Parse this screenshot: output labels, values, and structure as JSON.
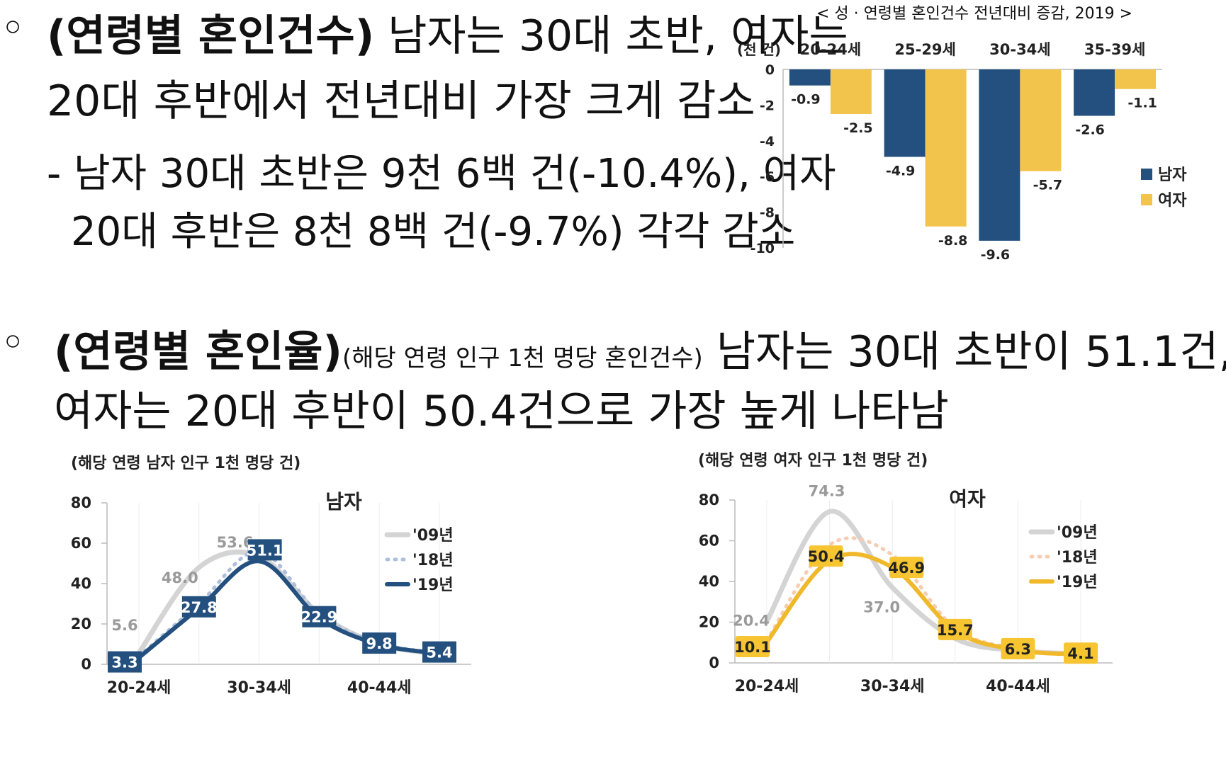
{
  "section1": {
    "bullet": "○",
    "heading": "(연령별 혼인건수)",
    "line1_rest": " 남자는 30대 초반, 여자는",
    "line2": "20대 후반에서 전년대비 가장 크게 감소",
    "sub_line1": "- 남자 30대 초반은 9천 6백 건(-10.4%), 여자",
    "sub_line2": "20대 후반은 8천 8백 건(-9.7%) 각각 감소"
  },
  "section2": {
    "bullet": "○",
    "heading": "(연령별 혼인율)",
    "note": "(해당 연령 인구 1천 명당 혼인건수)",
    "line1_rest": " 남자는 30대 초반이 51.1건,",
    "line2": "여자는 20대 후반이 50.4건으로 가장 높게 나타남"
  },
  "colors": {
    "male": "#23507f",
    "female": "#f2c44c",
    "gray09": "#d4d4d4",
    "male18": "#aebfdb",
    "female18": "#f6cdb2"
  },
  "chart_data": [
    {
      "type": "bar",
      "title": "< 성 · 연령별 혼인건수 전년대비 증감, 2019 >",
      "unit_label": "(천 건)",
      "categories": [
        "20-24세",
        "25-29세",
        "30-34세",
        "35-39세"
      ],
      "series": [
        {
          "name": "남자",
          "values": [
            -0.9,
            -4.9,
            -9.6,
            -2.6
          ]
        },
        {
          "name": "여자",
          "values": [
            -2.5,
            -8.8,
            -5.7,
            -1.1
          ]
        }
      ],
      "ylim": [
        -10,
        0
      ],
      "yticks": [
        0,
        -2,
        -4,
        -6,
        -8,
        -10
      ],
      "legend": "right",
      "grid": false
    },
    {
      "type": "line",
      "title": "남자",
      "unit_label": "(해당 연령 남자 인구 1천 명당 건)",
      "x_tick_labels": [
        "20-24세",
        "30-34세",
        "40-44세"
      ],
      "ylim": [
        0,
        80
      ],
      "yticks": [
        0,
        20,
        40,
        60,
        80
      ],
      "legend": "top-right",
      "series": [
        {
          "name": "'09년",
          "values": [
            5.6,
            48.0,
            53.6,
            25.0,
            10.0,
            5.0
          ]
        },
        {
          "name": "'18년",
          "values": [
            4.0,
            30.0,
            56.0,
            25.0,
            10.5,
            5.6
          ]
        },
        {
          "name": "'19년",
          "values": [
            3.3,
            27.8,
            51.1,
            22.9,
            9.8,
            5.4
          ]
        }
      ],
      "data_labels_09": [
        5.6,
        48.0,
        53.6
      ],
      "data_labels_19": [
        3.3,
        27.8,
        51.1,
        22.9,
        9.8,
        5.4
      ]
    },
    {
      "type": "line",
      "title": "여자",
      "unit_label": "(해당 연령 여자 인구 1천 명당 건)",
      "x_tick_labels": [
        "20-24세",
        "30-34세",
        "40-44세"
      ],
      "ylim": [
        0,
        80
      ],
      "yticks": [
        0,
        20,
        40,
        60,
        80
      ],
      "legend": "top-right",
      "series": [
        {
          "name": "'09년",
          "values": [
            20.4,
            74.3,
            37.0,
            12.0,
            6.0,
            4.5
          ]
        },
        {
          "name": "'18년",
          "values": [
            11.0,
            58.0,
            53.0,
            17.0,
            7.0,
            4.5
          ]
        },
        {
          "name": "'19년",
          "values": [
            10.1,
            50.4,
            46.9,
            15.7,
            6.3,
            4.1
          ]
        }
      ],
      "data_labels_09": [
        20.4,
        74.3,
        37.0
      ],
      "data_labels_19": [
        10.1,
        50.4,
        46.9,
        15.7,
        6.3,
        4.1
      ]
    }
  ]
}
